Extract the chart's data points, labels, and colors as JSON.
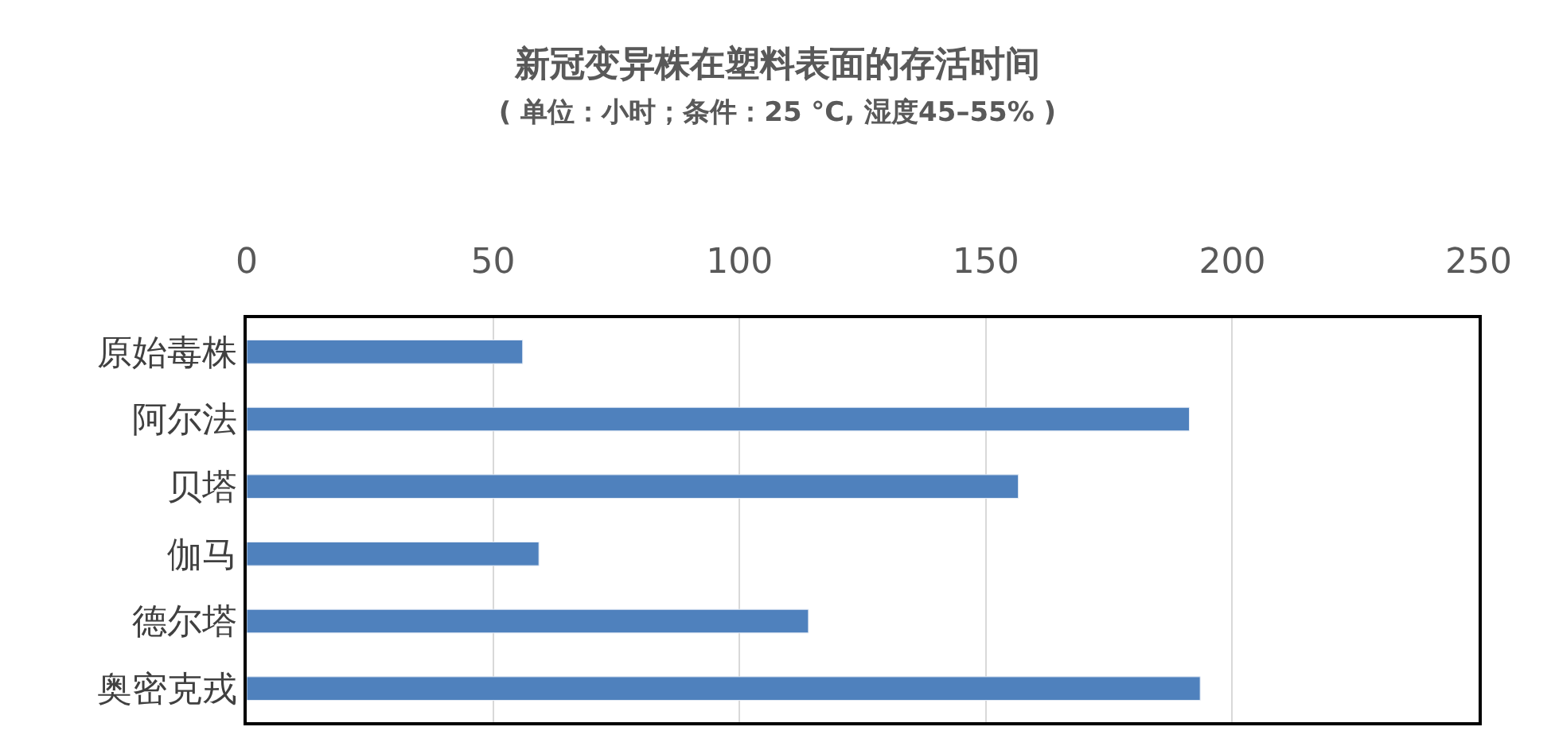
{
  "chart_data": {
    "type": "bar",
    "orientation": "horizontal",
    "title": "新冠变异株在塑料表面的存活时间",
    "subtitle": "( 单位：小时；条件：25 °C, 湿度45–55% )",
    "categories": [
      "原始毒株",
      "阿尔法",
      "贝塔",
      "伽马",
      "德尔塔",
      "奥密克戎"
    ],
    "values": [
      56,
      191.3,
      156.6,
      59.3,
      114,
      193.5
    ],
    "color": "#4f81bd",
    "xlim": [
      0,
      250
    ],
    "xticks": [
      0,
      50,
      100,
      150,
      200,
      250
    ],
    "grid": "x"
  }
}
